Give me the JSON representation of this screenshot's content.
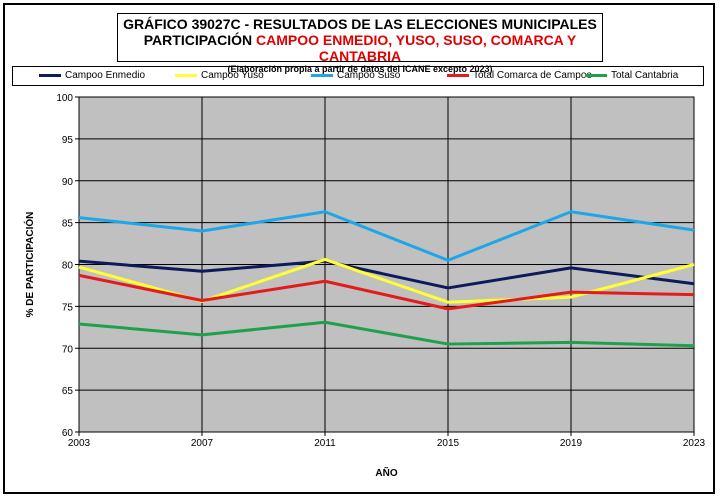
{
  "title": {
    "line1": "GRÁFICO 39027C - RESULTADOS DE LAS ELECCIONES MUNICIPALES",
    "line2_prefix": "PARTICIPACIÓN ",
    "line2_highlight": "CAMPOO ENMEDIO, YUSO, SUSO, COMARCA Y CANTABRIA",
    "line3": "(Elaboración propia a partir de datos del ICANE excepto 2023)"
  },
  "colors": {
    "plot_background": "#c0c0c0",
    "title_highlight": "#e00000"
  },
  "chart_data": {
    "type": "line",
    "x": [
      "2003",
      "2007",
      "2011",
      "2015",
      "2019",
      "2023"
    ],
    "xlabel": "AÑO",
    "ylabel": "% DE PARTICIPACIÓN",
    "ylim": [
      60,
      100
    ],
    "yticks": [
      "60",
      "65",
      "70",
      "75",
      "80",
      "85",
      "90",
      "95",
      "100"
    ],
    "grid": true,
    "legend_position": "top",
    "series": [
      {
        "name": "Campoo Enmedio",
        "color": "#0d1a5c",
        "values": [
          80.4,
          79.2,
          80.4,
          77.2,
          79.6,
          77.7
        ]
      },
      {
        "name": "Campoo Yuso",
        "color": "#ffff33",
        "values": [
          79.7,
          75.6,
          80.6,
          75.5,
          76.1,
          80.0
        ]
      },
      {
        "name": "Campoo Suso",
        "color": "#1ea7e8",
        "values": [
          85.6,
          84.0,
          86.3,
          80.5,
          86.3,
          84.1
        ]
      },
      {
        "name": "Total Comarca de Campoo",
        "color": "#e31b1b",
        "values": [
          78.7,
          75.7,
          78.0,
          74.7,
          76.7,
          76.4
        ]
      },
      {
        "name": "Total Cantabria",
        "color": "#1fa04a",
        "values": [
          72.9,
          71.6,
          73.1,
          70.5,
          70.7,
          70.3
        ]
      }
    ]
  }
}
